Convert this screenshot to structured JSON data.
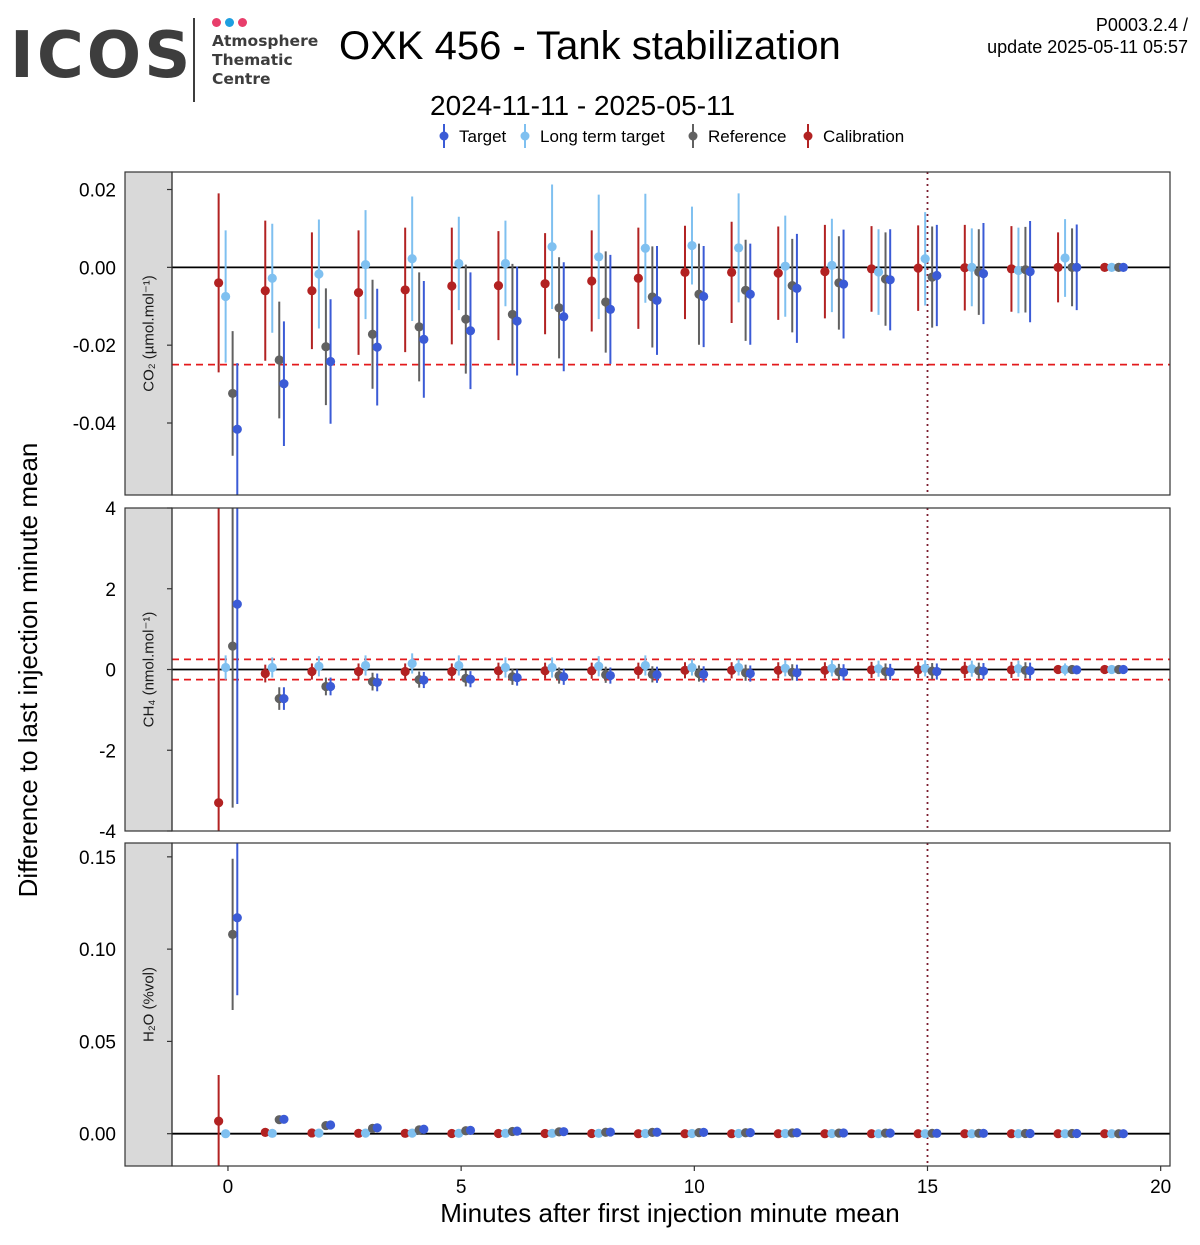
{
  "header": {
    "logo_text": "ICOS",
    "logo_subtext": "Atmosphere\nThematic\nCentre",
    "logo_dot_colors": [
      "#e83e6b",
      "#1e9fe0",
      "#e83e6b"
    ],
    "title": "OXK 456 - Tank stabilization",
    "subtitle": "2024-11-11 - 2025-05-11",
    "version": "P0003.2.4 /",
    "update": "update  2025-05-11 05:57"
  },
  "chart_data": {
    "type": "scatter",
    "xlabel": "Minutes after first injection minute mean",
    "ylabel": "Difference to last injection minute mean",
    "xlim": [
      -1.2,
      20.2
    ],
    "xticks": [
      0,
      5,
      10,
      15,
      20
    ],
    "xtick_labels": [
      "0",
      "5",
      "10",
      "15",
      "20"
    ],
    "vline_x": 15,
    "legend": {
      "position": "top",
      "entries": [
        {
          "name": "Target",
          "color": "#3b5bd6"
        },
        {
          "name": "Long term target",
          "color": "#7fc0f0"
        },
        {
          "name": "Reference",
          "color": "#616161"
        },
        {
          "name": "Calibration",
          "color": "#b22222"
        }
      ]
    },
    "series_offsets": {
      "Calibration": -0.2,
      "Long term target": -0.05,
      "Reference": 0.1,
      "Target": 0.2
    },
    "panels": [
      {
        "id": "co2",
        "strip_label": "CO₂ (µmol.mol⁻¹)",
        "ylim": [
          -0.0585,
          0.0245
        ],
        "yticks": [
          -0.04,
          -0.02,
          0.0,
          0.02
        ],
        "ytick_labels": [
          "-0.04",
          "-0.02",
          "0.00",
          "0.02"
        ],
        "hlines_dashed": [
          -0.025,
          0.025
        ],
        "series": [
          {
            "name": "Calibration",
            "x": [
              0,
              1,
              2,
              3,
              4,
              5,
              6,
              7,
              8,
              9,
              10,
              11,
              12,
              13,
              14,
              15,
              16,
              17,
              18,
              19
            ],
            "y": [
              -0.004,
              -0.006,
              -0.006,
              -0.0065,
              -0.0058,
              -0.0048,
              -0.0047,
              -0.0042,
              -0.0035,
              -0.0028,
              -0.0013,
              -0.0013,
              -0.0015,
              -0.0011,
              -0.0004,
              -0.0002,
              -0.0001,
              -0.0004,
              0.0,
              0.0
            ],
            "err": [
              0.023,
              0.018,
              0.015,
              0.016,
              0.016,
              0.015,
              0.014,
              0.013,
              0.013,
              0.013,
              0.012,
              0.013,
              0.012,
              0.012,
              0.011,
              0.011,
              0.011,
              0.011,
              0.009,
              0.0005
            ]
          },
          {
            "name": "Long term target",
            "x": [
              0,
              1,
              2,
              3,
              4,
              5,
              6,
              7,
              8,
              9,
              10,
              11,
              12,
              13,
              14,
              15,
              16,
              17,
              18,
              19
            ],
            "y": [
              -0.0075,
              -0.0028,
              -0.0017,
              0.0007,
              0.0022,
              0.001,
              0.001,
              0.0053,
              0.0027,
              0.0049,
              0.0056,
              0.005,
              0.0003,
              0.0005,
              -0.0012,
              0.0022,
              0.0,
              -0.0008,
              0.0024,
              0.0
            ],
            "err": [
              0.017,
              0.014,
              0.014,
              0.014,
              0.016,
              0.012,
              0.011,
              0.016,
              0.016,
              0.014,
              0.01,
              0.014,
              0.013,
              0.012,
              0.011,
              0.012,
              0.01,
              0.011,
              0.01,
              0.0005
            ]
          },
          {
            "name": "Reference",
            "x": [
              0,
              1,
              2,
              3,
              4,
              5,
              6,
              7,
              8,
              9,
              10,
              11,
              12,
              13,
              14,
              15,
              16,
              17,
              18,
              19
            ],
            "y": [
              -0.0324,
              -0.0238,
              -0.0204,
              -0.0172,
              -0.0153,
              -0.0133,
              -0.0121,
              -0.0104,
              -0.0089,
              -0.0076,
              -0.0069,
              -0.0059,
              -0.0047,
              -0.004,
              -0.003,
              -0.0025,
              -0.0012,
              -0.0006,
              0.0,
              0.0
            ],
            "err": [
              0.016,
              0.015,
              0.015,
              0.014,
              0.014,
              0.014,
              0.013,
              0.013,
              0.013,
              0.013,
              0.013,
              0.013,
              0.012,
              0.012,
              0.012,
              0.013,
              0.011,
              0.011,
              0.01,
              0.0005
            ]
          },
          {
            "name": "Target",
            "x": [
              0,
              1,
              2,
              3,
              4,
              5,
              6,
              7,
              8,
              9,
              10,
              11,
              12,
              13,
              14,
              15,
              16,
              17,
              18,
              19
            ],
            "y": [
              -0.0416,
              -0.0299,
              -0.0242,
              -0.0205,
              -0.0185,
              -0.0163,
              -0.0138,
              -0.0127,
              -0.0108,
              -0.0085,
              -0.0075,
              -0.0069,
              -0.0054,
              -0.0043,
              -0.0032,
              -0.0021,
              -0.0016,
              -0.0011,
              0.0,
              0.0
            ],
            "err": [
              0.017,
              0.016,
              0.016,
              0.015,
              0.015,
              0.015,
              0.014,
              0.014,
              0.014,
              0.014,
              0.013,
              0.013,
              0.014,
              0.014,
              0.013,
              0.013,
              0.013,
              0.013,
              0.011,
              0.0005
            ]
          }
        ]
      },
      {
        "id": "ch4",
        "strip_label": "CH₄ (nmol.mol⁻¹)",
        "ylim": [
          -4.0,
          4.0
        ],
        "yticks": [
          -4,
          -2,
          0,
          2,
          4
        ],
        "ytick_labels": [
          "-4",
          "-2",
          "0",
          "2",
          "4"
        ],
        "hlines_dashed": [
          -0.25,
          0.25
        ],
        "series": [
          {
            "name": "Calibration",
            "x": [
              0,
              1,
              2,
              3,
              4,
              5,
              6,
              7,
              8,
              9,
              10,
              11,
              12,
              13,
              14,
              15,
              16,
              17,
              18,
              19
            ],
            "y": [
              -3.3,
              -0.1,
              -0.05,
              -0.05,
              -0.05,
              -0.05,
              -0.03,
              -0.03,
              -0.03,
              -0.03,
              -0.02,
              -0.02,
              -0.02,
              -0.02,
              -0.01,
              -0.01,
              -0.01,
              -0.01,
              0.0,
              0.0
            ],
            "err": [
              7.5,
              0.22,
              0.2,
              0.2,
              0.2,
              0.2,
              0.2,
              0.2,
              0.2,
              0.2,
              0.2,
              0.2,
              0.2,
              0.2,
              0.2,
              0.2,
              0.2,
              0.2,
              0.1,
              0.02
            ]
          },
          {
            "name": "Long term target",
            "x": [
              0,
              1,
              2,
              3,
              4,
              5,
              6,
              7,
              8,
              9,
              10,
              11,
              12,
              13,
              14,
              15,
              16,
              17,
              18,
              19
            ],
            "y": [
              0.05,
              0.05,
              0.08,
              0.1,
              0.15,
              0.1,
              0.05,
              0.05,
              0.08,
              0.1,
              0.05,
              0.05,
              0.03,
              0.03,
              0.02,
              0.03,
              0.02,
              0.02,
              0.0,
              0.0
            ],
            "err": [
              0.3,
              0.25,
              0.25,
              0.25,
              0.25,
              0.25,
              0.25,
              0.25,
              0.25,
              0.25,
              0.2,
              0.2,
              0.2,
              0.2,
              0.2,
              0.2,
              0.2,
              0.2,
              0.15,
              0.02
            ]
          },
          {
            "name": "Reference",
            "x": [
              0,
              1,
              2,
              3,
              4,
              5,
              6,
              7,
              8,
              9,
              10,
              11,
              12,
              13,
              14,
              15,
              16,
              17,
              18,
              19
            ],
            "y": [
              0.58,
              -0.72,
              -0.42,
              -0.3,
              -0.25,
              -0.22,
              -0.18,
              -0.15,
              -0.13,
              -0.12,
              -0.1,
              -0.08,
              -0.07,
              -0.06,
              -0.05,
              -0.04,
              -0.03,
              -0.02,
              0.0,
              0.0
            ],
            "err": [
              4.0,
              0.28,
              0.22,
              0.22,
              0.2,
              0.2,
              0.2,
              0.2,
              0.2,
              0.2,
              0.2,
              0.2,
              0.2,
              0.2,
              0.2,
              0.2,
              0.2,
              0.2,
              0.1,
              0.02
            ]
          },
          {
            "name": "Target",
            "x": [
              0,
              1,
              2,
              3,
              4,
              5,
              6,
              7,
              8,
              9,
              10,
              11,
              12,
              13,
              14,
              15,
              16,
              17,
              18,
              19
            ],
            "y": [
              1.62,
              -0.72,
              -0.42,
              -0.32,
              -0.26,
              -0.24,
              -0.2,
              -0.18,
              -0.15,
              -0.13,
              -0.12,
              -0.1,
              -0.08,
              -0.07,
              -0.06,
              -0.05,
              -0.04,
              -0.03,
              -0.01,
              0.0
            ],
            "err": [
              4.95,
              0.28,
              0.22,
              0.22,
              0.2,
              0.2,
              0.2,
              0.2,
              0.2,
              0.2,
              0.2,
              0.2,
              0.2,
              0.2,
              0.2,
              0.2,
              0.2,
              0.2,
              0.1,
              0.02
            ]
          }
        ]
      },
      {
        "id": "h2o",
        "strip_label": "H₂O (%vol)",
        "ylim": [
          -0.0175,
          0.1575
        ],
        "yticks": [
          0.0,
          0.05,
          0.1,
          0.15
        ],
        "ytick_labels": [
          "0.00",
          "0.05",
          "0.10",
          "0.15"
        ],
        "hlines_dashed": [],
        "series": [
          {
            "name": "Calibration",
            "x": [
              0,
              1,
              2,
              3,
              4,
              5,
              6,
              7,
              8,
              9,
              10,
              11,
              12,
              13,
              14,
              15,
              16,
              17,
              18,
              19
            ],
            "y": [
              0.0068,
              0.0007,
              0.0004,
              0.0002,
              0.0002,
              0.0001,
              0.0001,
              0.0001,
              0.0001,
              0.0,
              0.0,
              0.0,
              0.0,
              0.0,
              0.0,
              0.0,
              0.0,
              0.0,
              0.0,
              0.0
            ],
            "err": [
              0.025,
              0.001,
              0.001,
              0.001,
              0.001,
              0.001,
              0.001,
              0.001,
              0.001,
              0.001,
              0.001,
              0.001,
              0.001,
              0.001,
              0.001,
              0.001,
              0.001,
              0.001,
              0.001,
              0.0005
            ]
          },
          {
            "name": "Long term target",
            "x": [
              0,
              1,
              2,
              3,
              4,
              5,
              6,
              7,
              8,
              9,
              10,
              11,
              12,
              13,
              14,
              15,
              16,
              17,
              18,
              19
            ],
            "y": [
              0.0,
              0.0002,
              0.0003,
              0.0003,
              0.0003,
              0.0002,
              0.0002,
              0.0002,
              0.0002,
              0.0001,
              0.0001,
              0.0001,
              0.0001,
              0.0001,
              0.0,
              0.0,
              0.0,
              0.0,
              0.0,
              0.0
            ],
            "err": [
              0.001,
              0.001,
              0.001,
              0.001,
              0.001,
              0.001,
              0.001,
              0.001,
              0.001,
              0.001,
              0.001,
              0.001,
              0.001,
              0.001,
              0.001,
              0.001,
              0.001,
              0.001,
              0.001,
              0.0005
            ]
          },
          {
            "name": "Reference",
            "x": [
              0,
              1,
              2,
              3,
              4,
              5,
              6,
              7,
              8,
              9,
              10,
              11,
              12,
              13,
              14,
              15,
              16,
              17,
              18,
              19
            ],
            "y": [
              0.108,
              0.0076,
              0.0044,
              0.0029,
              0.0021,
              0.0016,
              0.0012,
              0.001,
              0.0008,
              0.0007,
              0.0006,
              0.0005,
              0.0004,
              0.0003,
              0.0003,
              0.0002,
              0.0002,
              0.0001,
              0.0001,
              0.0
            ],
            "err": [
              0.041,
              0.0015,
              0.0015,
              0.0012,
              0.001,
              0.001,
              0.001,
              0.001,
              0.001,
              0.001,
              0.001,
              0.001,
              0.001,
              0.001,
              0.001,
              0.001,
              0.001,
              0.001,
              0.001,
              0.0005
            ]
          },
          {
            "name": "Target",
            "x": [
              0,
              1,
              2,
              3,
              4,
              5,
              6,
              7,
              8,
              9,
              10,
              11,
              12,
              13,
              14,
              15,
              16,
              17,
              18,
              19
            ],
            "y": [
              0.117,
              0.0078,
              0.0047,
              0.0032,
              0.0024,
              0.0018,
              0.0014,
              0.0011,
              0.0009,
              0.0008,
              0.0007,
              0.0006,
              0.0005,
              0.0004,
              0.0003,
              0.0002,
              0.0002,
              0.0001,
              0.0001,
              0.0
            ],
            "err": [
              0.042,
              0.0015,
              0.0015,
              0.0012,
              0.001,
              0.001,
              0.001,
              0.001,
              0.001,
              0.001,
              0.001,
              0.001,
              0.001,
              0.001,
              0.001,
              0.001,
              0.001,
              0.001,
              0.001,
              0.0005
            ]
          }
        ]
      }
    ]
  }
}
